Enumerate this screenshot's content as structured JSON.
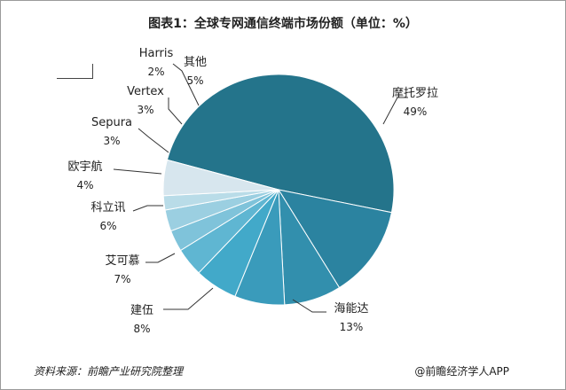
{
  "chart_data": {
    "type": "pie",
    "title": "图表1：全球专网通信终端市场份额（单位：%）",
    "slices": [
      {
        "name": "摩托罗拉",
        "value": 49,
        "label": "49%",
        "color": "#24748b"
      },
      {
        "name": "海能达",
        "value": 13,
        "label": "13%",
        "color": "#2b83a0"
      },
      {
        "name": "建伍",
        "value": 8,
        "label": "8%",
        "color": "#328fad"
      },
      {
        "name": "艾可慕",
        "value": 7,
        "label": "7%",
        "color": "#3a9bbb"
      },
      {
        "name": "科立讯",
        "value": 6,
        "label": "6%",
        "color": "#42a9c9"
      },
      {
        "name": "欧宇航",
        "value": 4,
        "label": "4%",
        "color": "#5fb6d2"
      },
      {
        "name": "Sepura",
        "value": 3,
        "label": "3%",
        "color": "#7fc3da"
      },
      {
        "name": "Vertex",
        "value": 3,
        "label": "3%",
        "color": "#9bcfe1"
      },
      {
        "name": "Harris",
        "value": 2,
        "label": "2%",
        "color": "#b9dce8"
      },
      {
        "name": "其他",
        "value": 5,
        "label": "5%",
        "color": "#d7e6ee"
      }
    ]
  },
  "footer": {
    "source": "资料来源：前瞻产业研究院整理",
    "credit": "@前瞻经济学人APP"
  }
}
